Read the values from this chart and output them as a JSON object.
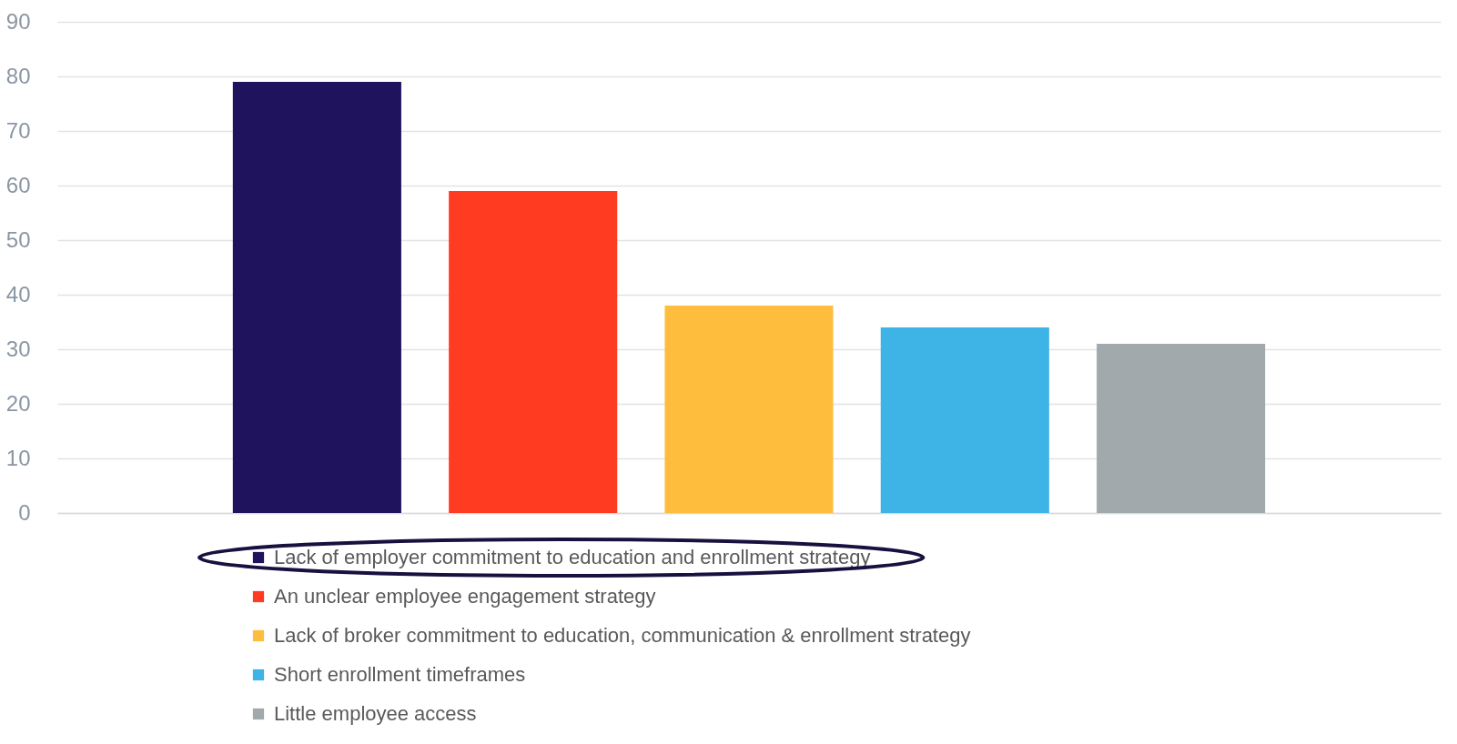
{
  "chart_data": {
    "type": "bar",
    "categories": [
      null
    ],
    "series": [
      {
        "name": "Lack of employer commitment to education and enrollment strategy",
        "color": "#20135e",
        "values": [
          79
        ]
      },
      {
        "name": "An unclear employee engagement strategy",
        "color": "#ff3c21",
        "values": [
          59
        ]
      },
      {
        "name": "Lack of broker commitment to education, communication & enrollment strategy",
        "color": "#ffbd3d",
        "values": [
          38
        ]
      },
      {
        "name": "Short enrollment timeframes",
        "color": "#3db3e6",
        "values": [
          34
        ]
      },
      {
        "name": "Little employee access",
        "color": "#a2a9ad",
        "values": [
          31
        ]
      }
    ],
    "ylim": [
      0,
      90
    ],
    "yticks": [
      0,
      10,
      20,
      30,
      40,
      50,
      60,
      70,
      80,
      90
    ],
    "grid": "y",
    "legend": "bottom"
  }
}
